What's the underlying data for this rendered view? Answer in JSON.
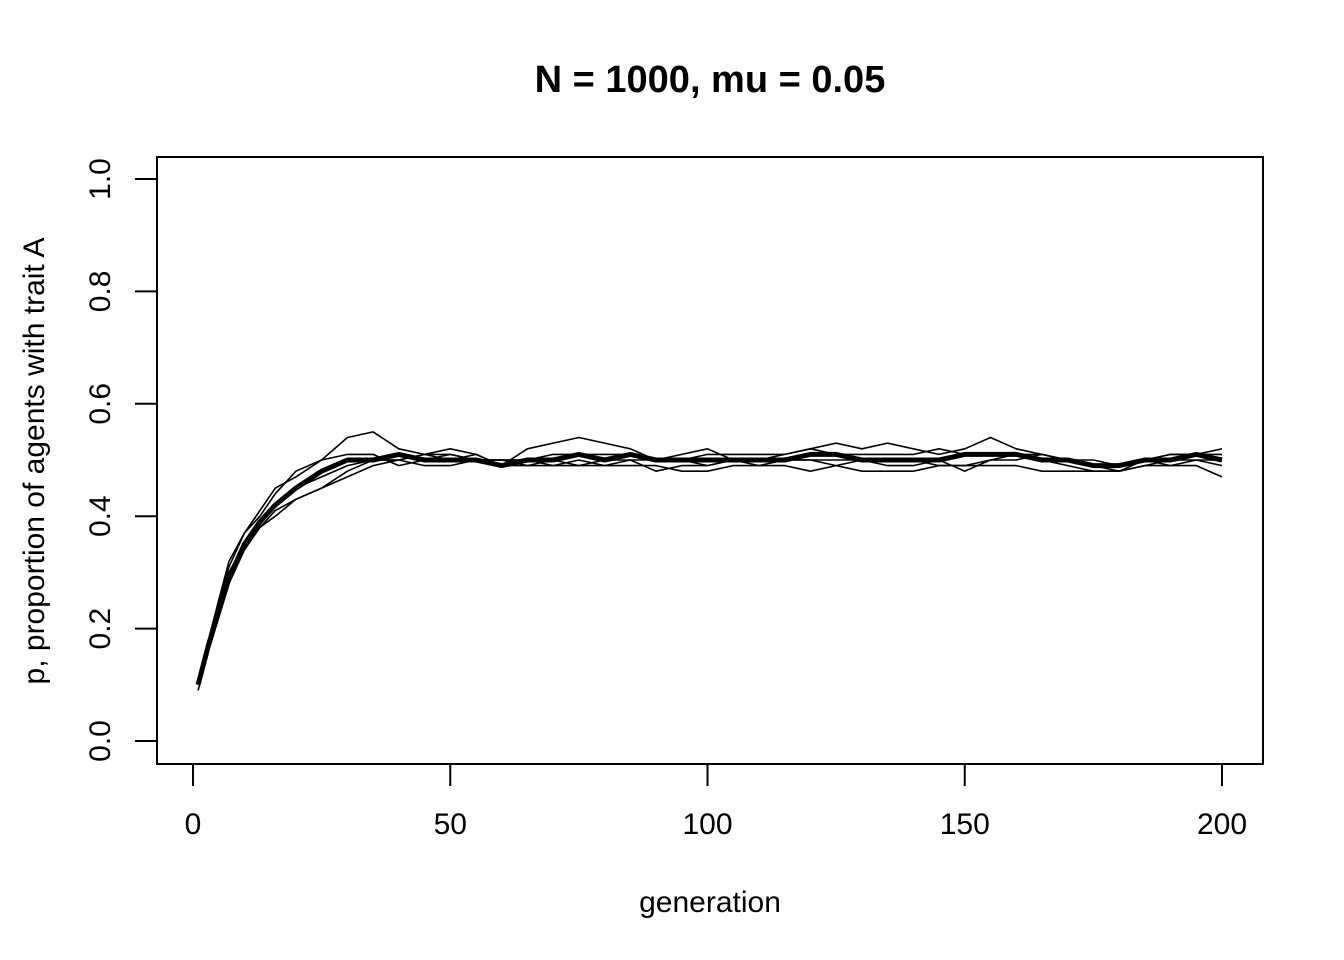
{
  "chart_data": {
    "type": "line",
    "title": "N = 1000, mu = 0.05",
    "xlabel": "generation",
    "ylabel": "p, proportion of agents with trait A",
    "xlim": [
      0,
      200
    ],
    "ylim": [
      0,
      1
    ],
    "x_ticks": [
      "0",
      "50",
      "100",
      "150",
      "200"
    ],
    "y_ticks": [
      "0.0",
      "0.2",
      "0.4",
      "0.6",
      "0.8",
      "1.0"
    ],
    "grid": false,
    "legend": "none",
    "line_color": "#000000",
    "x": [
      1,
      3,
      5,
      7,
      10,
      13,
      16,
      20,
      25,
      30,
      35,
      40,
      45,
      50,
      55,
      60,
      65,
      70,
      75,
      80,
      85,
      90,
      95,
      100,
      105,
      110,
      115,
      120,
      125,
      130,
      135,
      140,
      145,
      150,
      155,
      160,
      165,
      170,
      175,
      180,
      185,
      190,
      195,
      200
    ],
    "series": [
      {
        "values": [
          0.1,
          0.17,
          0.23,
          0.29,
          0.35,
          0.39,
          0.42,
          0.45,
          0.48,
          0.5,
          0.5,
          0.51,
          0.5,
          0.5,
          0.5,
          0.49,
          0.5,
          0.5,
          0.51,
          0.5,
          0.51,
          0.5,
          0.5,
          0.5,
          0.5,
          0.5,
          0.5,
          0.51,
          0.51,
          0.5,
          0.5,
          0.5,
          0.5,
          0.51,
          0.51,
          0.51,
          0.5,
          0.5,
          0.49,
          0.49,
          0.5,
          0.5,
          0.51,
          0.5
        ],
        "style": "mean"
      },
      {
        "values": [
          0.1,
          0.18,
          0.25,
          0.31,
          0.37,
          0.41,
          0.45,
          0.47,
          0.5,
          0.54,
          0.55,
          0.52,
          0.51,
          0.5,
          0.51,
          0.49,
          0.52,
          0.53,
          0.54,
          0.53,
          0.52,
          0.5,
          0.51,
          0.52,
          0.5,
          0.5,
          0.51,
          0.52,
          0.53,
          0.52,
          0.53,
          0.52,
          0.51,
          0.52,
          0.54,
          0.52,
          0.51,
          0.5,
          0.49,
          0.49,
          0.5,
          0.51,
          0.51,
          0.52
        ]
      },
      {
        "values": [
          0.11,
          0.16,
          0.22,
          0.28,
          0.34,
          0.38,
          0.41,
          0.43,
          0.45,
          0.47,
          0.49,
          0.5,
          0.51,
          0.52,
          0.51,
          0.49,
          0.49,
          0.5,
          0.49,
          0.5,
          0.5,
          0.48,
          0.49,
          0.49,
          0.5,
          0.49,
          0.5,
          0.5,
          0.49,
          0.5,
          0.49,
          0.49,
          0.5,
          0.48,
          0.5,
          0.5,
          0.51,
          0.5,
          0.49,
          0.48,
          0.5,
          0.49,
          0.5,
          0.5
        ]
      },
      {
        "values": [
          0.1,
          0.16,
          0.24,
          0.3,
          0.35,
          0.38,
          0.4,
          0.43,
          0.45,
          0.48,
          0.5,
          0.5,
          0.51,
          0.51,
          0.5,
          0.5,
          0.49,
          0.49,
          0.5,
          0.49,
          0.49,
          0.49,
          0.48,
          0.48,
          0.49,
          0.49,
          0.49,
          0.48,
          0.49,
          0.48,
          0.48,
          0.48,
          0.49,
          0.49,
          0.49,
          0.49,
          0.48,
          0.48,
          0.48,
          0.48,
          0.49,
          0.49,
          0.49,
          0.47
        ]
      },
      {
        "values": [
          0.1,
          0.17,
          0.25,
          0.32,
          0.37,
          0.4,
          0.44,
          0.48,
          0.5,
          0.51,
          0.51,
          0.49,
          0.5,
          0.51,
          0.5,
          0.5,
          0.5,
          0.51,
          0.51,
          0.51,
          0.51,
          0.5,
          0.5,
          0.51,
          0.51,
          0.51,
          0.51,
          0.52,
          0.51,
          0.51,
          0.51,
          0.51,
          0.52,
          0.51,
          0.51,
          0.51,
          0.51,
          0.5,
          0.5,
          0.49,
          0.5,
          0.51,
          0.51,
          0.51
        ]
      },
      {
        "values": [
          0.09,
          0.16,
          0.24,
          0.3,
          0.35,
          0.39,
          0.42,
          0.45,
          0.47,
          0.49,
          0.5,
          0.5,
          0.49,
          0.49,
          0.5,
          0.5,
          0.5,
          0.49,
          0.49,
          0.49,
          0.5,
          0.5,
          0.5,
          0.49,
          0.5,
          0.5,
          0.5,
          0.5,
          0.5,
          0.5,
          0.5,
          0.5,
          0.49,
          0.49,
          0.5,
          0.51,
          0.5,
          0.49,
          0.48,
          0.48,
          0.49,
          0.5,
          0.5,
          0.49
        ]
      }
    ]
  }
}
